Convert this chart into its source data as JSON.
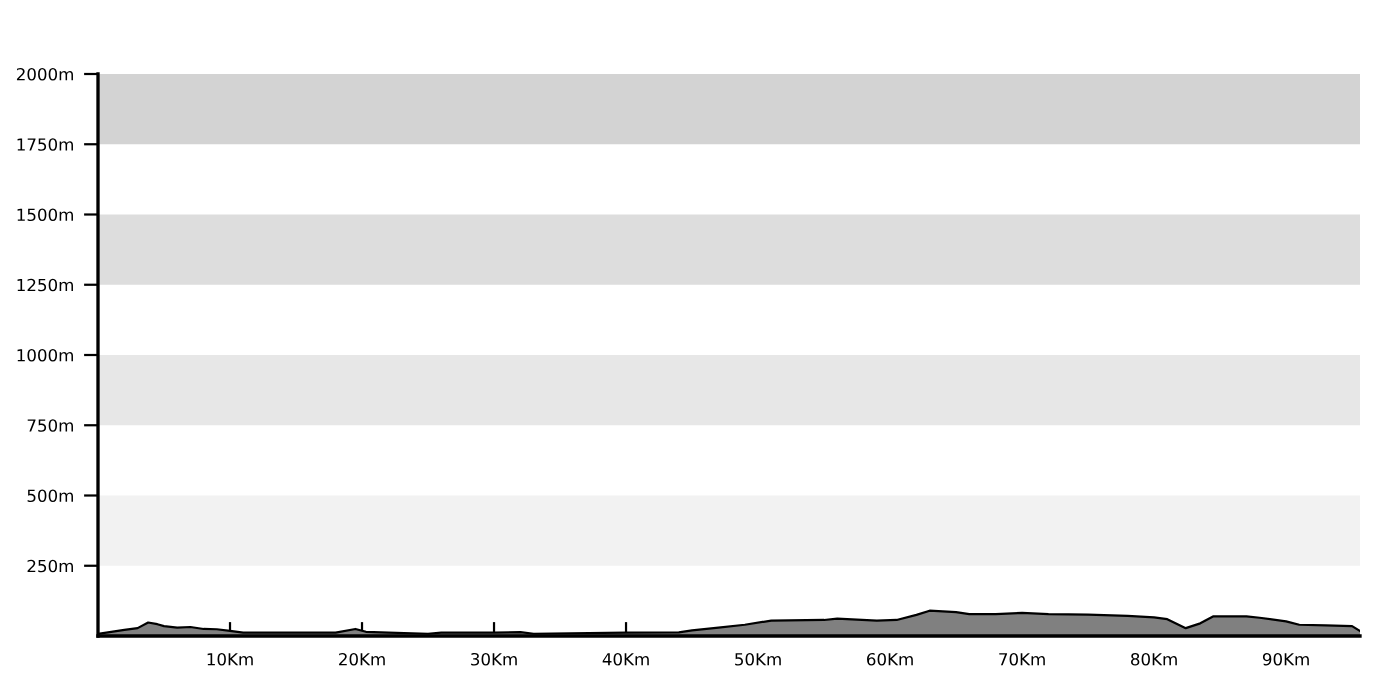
{
  "chart_data": {
    "type": "area",
    "color": "#808080",
    "x": [
      0,
      1,
      2,
      3,
      3.8,
      4.5,
      5,
      6,
      7,
      8,
      9,
      10,
      11,
      14,
      18,
      19.5,
      20.3,
      22,
      25,
      26,
      30,
      32,
      33,
      40,
      44,
      45,
      47,
      49,
      51,
      55,
      56,
      59,
      60.5,
      62,
      63,
      65,
      66,
      68,
      70,
      72,
      75,
      78,
      80,
      81,
      82.4,
      83.5,
      84.5,
      87,
      88,
      90,
      91,
      93,
      95,
      95.6
    ],
    "values": [
      8,
      15,
      22,
      28,
      48,
      42,
      35,
      30,
      32,
      25,
      24,
      18,
      12,
      12,
      12,
      25,
      15,
      12,
      8,
      12,
      12,
      14,
      8,
      12,
      13,
      20,
      30,
      40,
      55,
      57,
      62,
      55,
      57,
      75,
      90,
      85,
      78,
      78,
      82,
      78,
      76,
      72,
      66,
      60,
      28,
      45,
      70,
      70,
      65,
      52,
      40,
      38,
      35,
      18
    ],
    "xlim": [
      0,
      95.6
    ],
    "ylim": [
      0,
      2000
    ],
    "xticks": [
      {
        "value": 10,
        "label": "10Km"
      },
      {
        "value": 20,
        "label": "20Km"
      },
      {
        "value": 30,
        "label": "30Km"
      },
      {
        "value": 40,
        "label": "40Km"
      },
      {
        "value": 50,
        "label": "50Km"
      },
      {
        "value": 60,
        "label": "60Km"
      },
      {
        "value": 70,
        "label": "70Km"
      },
      {
        "value": 80,
        "label": "80Km"
      },
      {
        "value": 90,
        "label": "90Km"
      }
    ],
    "yticks": [
      {
        "value": 250,
        "label": "250m"
      },
      {
        "value": 500,
        "label": "500m"
      },
      {
        "value": 750,
        "label": "750m"
      },
      {
        "value": 1000,
        "label": "1000m"
      },
      {
        "value": 1250,
        "label": "1250m"
      },
      {
        "value": 1500,
        "label": "1500m"
      },
      {
        "value": 1750,
        "label": "1750m"
      },
      {
        "value": 2000,
        "label": "2000m"
      }
    ],
    "bands": [
      {
        "axis": "y",
        "from": 1750,
        "to": 2000,
        "color": "#d3d3d3"
      },
      {
        "axis": "y",
        "from": 1250,
        "to": 1500,
        "color": "#dddddd"
      },
      {
        "axis": "y",
        "from": 750,
        "to": 1000,
        "color": "#e7e7e7"
      },
      {
        "axis": "y",
        "from": 250,
        "to": 500,
        "color": "#f2f2f2"
      }
    ],
    "grid": false,
    "legend": false
  }
}
